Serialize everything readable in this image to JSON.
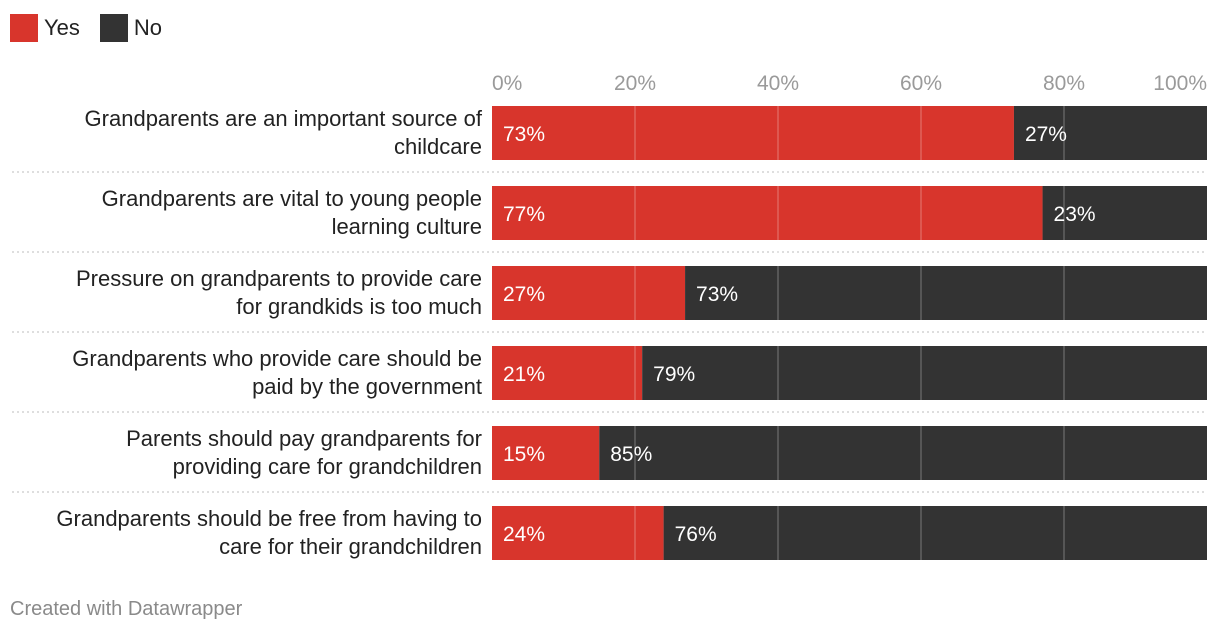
{
  "legend": {
    "yes_label": "Yes",
    "no_label": "No",
    "yes_color": "#d8352c",
    "no_color": "#333333"
  },
  "footer": {
    "credit": "Created with Datawrapper"
  },
  "chart_data": {
    "type": "bar",
    "orientation": "horizontal",
    "stacked": true,
    "title": "",
    "xlabel": "",
    "ylabel": "",
    "xlim": [
      0,
      100
    ],
    "x_ticks": [
      "0%",
      "20%",
      "40%",
      "60%",
      "80%",
      "100%"
    ],
    "x_tick_values": [
      0,
      20,
      40,
      60,
      80,
      100
    ],
    "grid": true,
    "legend_position": "top-left",
    "categories": [
      [
        "Grandparents are an important source of",
        "childcare"
      ],
      [
        "Grandparents are vital to young people",
        "learning culture"
      ],
      [
        "Pressure on grandparents to provide care",
        "for grandkids is too much"
      ],
      [
        "Grandparents who provide care should be",
        "paid by the government"
      ],
      [
        "Parents should pay grandparents for",
        "providing care for grandchildren"
      ],
      [
        "Grandparents should be free from having to",
        "care for their grandchildren"
      ]
    ],
    "series": [
      {
        "name": "Yes",
        "color": "#d8352c",
        "values": [
          73,
          77,
          27,
          21,
          15,
          24
        ],
        "labels": [
          "73%",
          "77%",
          "27%",
          "21%",
          "15%",
          "24%"
        ]
      },
      {
        "name": "No",
        "color": "#333333",
        "values": [
          27,
          23,
          73,
          79,
          85,
          76
        ],
        "labels": [
          "27%",
          "23%",
          "73%",
          "79%",
          "85%",
          "76%"
        ]
      }
    ]
  }
}
